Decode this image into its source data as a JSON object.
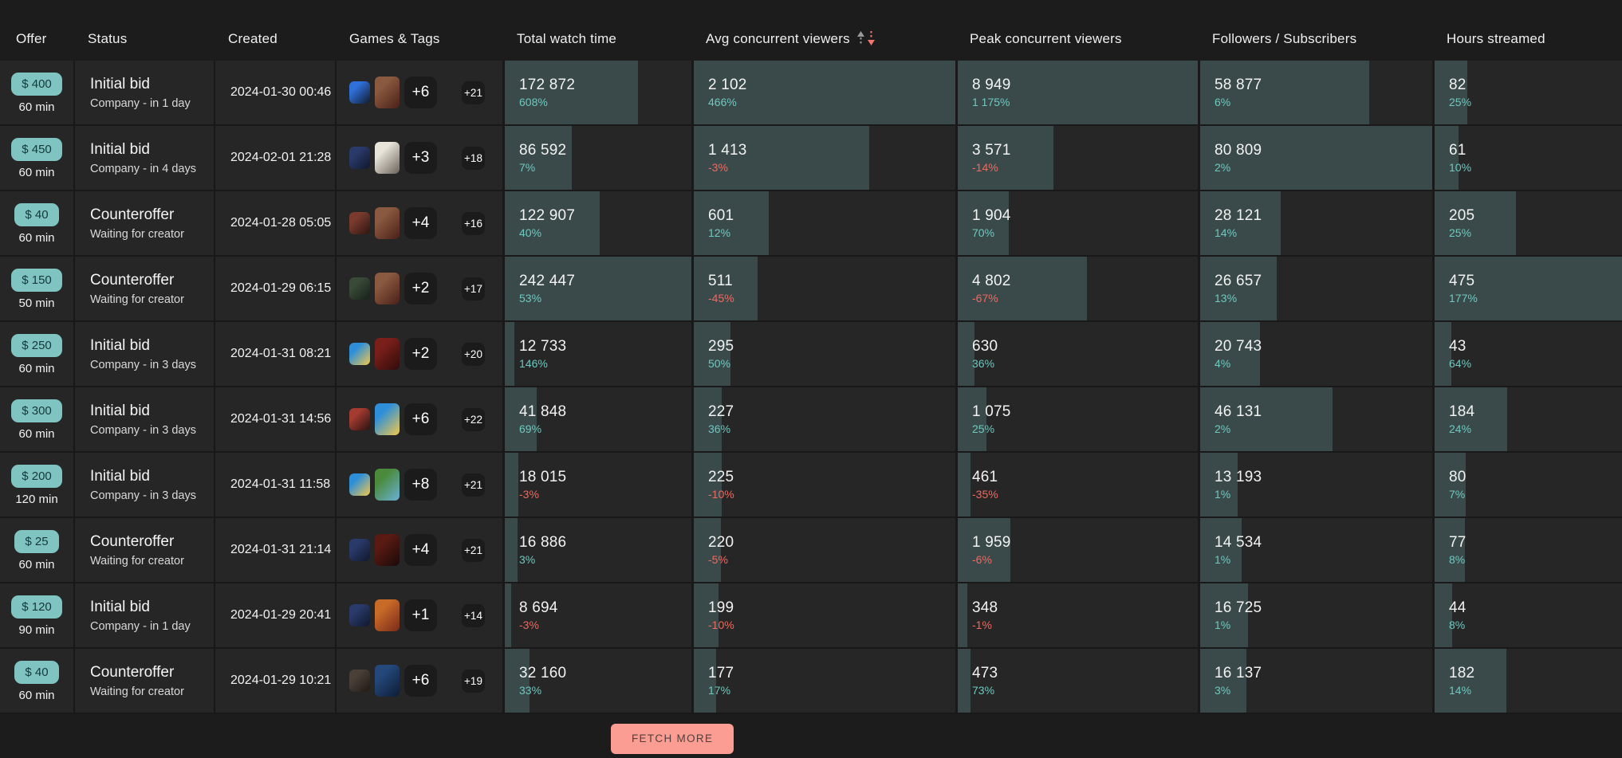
{
  "header": {
    "columns": [
      {
        "label": "Offer"
      },
      {
        "label": "Status"
      },
      {
        "label": "Created"
      },
      {
        "label": "Games & Tags"
      },
      {
        "label": "Total watch time"
      },
      {
        "label": "Avg concurrent viewers",
        "sorted": true
      },
      {
        "label": "Peak concurrent viewers"
      },
      {
        "label": "Followers / Subscribers"
      },
      {
        "label": "Hours streamed"
      }
    ],
    "sort": {
      "column": "Avg concurrent viewers",
      "direction": "desc"
    }
  },
  "colors": {
    "accent_teal": "#7fc4c1",
    "bar": "#3a4a4b",
    "positive": "#6ec8c0",
    "negative": "#f0685e",
    "button": "#fb9d92"
  },
  "footer": {
    "fetch_more_label": "FETCH MORE"
  },
  "rows": [
    {
      "offer": {
        "price": "$ 400",
        "duration": "60 min"
      },
      "status": {
        "label": "Initial bid",
        "sub": "Company - in 1 day"
      },
      "created": "2024-01-30 00:46",
      "games": {
        "more_games": "+6",
        "more_tags": "+21",
        "thumbs": [
          "#2f6fd8|#101c30",
          "#8a5a40|#4a2018"
        ]
      },
      "metrics": {
        "watch": {
          "value": "172 872",
          "change": "608%"
        },
        "avg": {
          "value": "2 102",
          "change": "466%"
        },
        "peak": {
          "value": "8 949",
          "change": "1 175%"
        },
        "followers": {
          "value": "58 877",
          "change": "6%"
        },
        "hours": {
          "value": "82",
          "change": "25%"
        }
      }
    },
    {
      "offer": {
        "price": "$ 450",
        "duration": "60 min"
      },
      "status": {
        "label": "Initial bid",
        "sub": "Company - in 4 days"
      },
      "created": "2024-02-01 21:28",
      "games": {
        "more_games": "+3",
        "more_tags": "+18",
        "thumbs": [
          "#2a3a6a|#10182e",
          "#e8e4da|#6a6258"
        ]
      },
      "metrics": {
        "watch": {
          "value": "86 592",
          "change": "7%"
        },
        "avg": {
          "value": "1 413",
          "change": "-3%"
        },
        "peak": {
          "value": "3 571",
          "change": "-14%"
        },
        "followers": {
          "value": "80 809",
          "change": "2%"
        },
        "hours": {
          "value": "61",
          "change": "10%"
        }
      }
    },
    {
      "offer": {
        "price": "$ 40",
        "duration": "60 min"
      },
      "status": {
        "label": "Counteroffer",
        "sub": "Waiting for creator"
      },
      "created": "2024-01-28 05:05",
      "games": {
        "more_games": "+4",
        "more_tags": "+16",
        "thumbs": [
          "#7a3b2e|#2e1511",
          "#8a5a40|#4a2018"
        ]
      },
      "metrics": {
        "watch": {
          "value": "122 907",
          "change": "40%"
        },
        "avg": {
          "value": "601",
          "change": "12%"
        },
        "peak": {
          "value": "1 904",
          "change": "70%"
        },
        "followers": {
          "value": "28 121",
          "change": "14%"
        },
        "hours": {
          "value": "205",
          "change": "25%"
        }
      }
    },
    {
      "offer": {
        "price": "$ 150",
        "duration": "50 min"
      },
      "status": {
        "label": "Counteroffer",
        "sub": "Waiting for creator"
      },
      "created": "2024-01-29 06:15",
      "games": {
        "more_games": "+2",
        "more_tags": "+17",
        "thumbs": [
          "#3a4a38|#15201a",
          "#8a5a40|#4a2018"
        ]
      },
      "metrics": {
        "watch": {
          "value": "242 447",
          "change": "53%"
        },
        "avg": {
          "value": "511",
          "change": "-45%"
        },
        "peak": {
          "value": "4 802",
          "change": "-67%"
        },
        "followers": {
          "value": "26 657",
          "change": "13%"
        },
        "hours": {
          "value": "475",
          "change": "177%"
        }
      }
    },
    {
      "offer": {
        "price": "$ 250",
        "duration": "60 min"
      },
      "status": {
        "label": "Initial bid",
        "sub": "Company - in 3 days"
      },
      "created": "2024-01-31 08:21",
      "games": {
        "more_games": "+2",
        "more_tags": "+20",
        "thumbs": [
          "#2e8fd8|#f2c84b",
          "#7a1f1a|#300c0a"
        ]
      },
      "metrics": {
        "watch": {
          "value": "12 733",
          "change": "146%"
        },
        "avg": {
          "value": "295",
          "change": "50%"
        },
        "peak": {
          "value": "630",
          "change": "36%"
        },
        "followers": {
          "value": "20 743",
          "change": "4%"
        },
        "hours": {
          "value": "43",
          "change": "64%"
        }
      }
    },
    {
      "offer": {
        "price": "$ 300",
        "duration": "60 min"
      },
      "status": {
        "label": "Initial bid",
        "sub": "Company - in 3 days"
      },
      "created": "2024-01-31 14:56",
      "games": {
        "more_games": "+6",
        "more_tags": "+22",
        "thumbs": [
          "#a33b30|#2a1210",
          "#2e8fd8|#f2c84b"
        ]
      },
      "metrics": {
        "watch": {
          "value": "41 848",
          "change": "69%"
        },
        "avg": {
          "value": "227",
          "change": "36%"
        },
        "peak": {
          "value": "1 075",
          "change": "25%"
        },
        "followers": {
          "value": "46 131",
          "change": "2%"
        },
        "hours": {
          "value": "184",
          "change": "24%"
        }
      }
    },
    {
      "offer": {
        "price": "$ 200",
        "duration": "120 min"
      },
      "status": {
        "label": "Initial bid",
        "sub": "Company - in 3 days"
      },
      "created": "2024-01-31 11:58",
      "games": {
        "more_games": "+8",
        "more_tags": "+21",
        "thumbs": [
          "#2e8fd8|#f2c84b",
          "#4a8a3a|#6ab0d8"
        ]
      },
      "metrics": {
        "watch": {
          "value": "18 015",
          "change": "-3%"
        },
        "avg": {
          "value": "225",
          "change": "-10%"
        },
        "peak": {
          "value": "461",
          "change": "-35%"
        },
        "followers": {
          "value": "13 193",
          "change": "1%"
        },
        "hours": {
          "value": "80",
          "change": "7%"
        }
      }
    },
    {
      "offer": {
        "price": "$ 25",
        "duration": "60 min"
      },
      "status": {
        "label": "Counteroffer",
        "sub": "Waiting for creator"
      },
      "created": "2024-01-31 21:14",
      "games": {
        "more_games": "+4",
        "more_tags": "+21",
        "thumbs": [
          "#2a3a6a|#10182e",
          "#5a1a14|#1a0a08"
        ]
      },
      "metrics": {
        "watch": {
          "value": "16 886",
          "change": "3%"
        },
        "avg": {
          "value": "220",
          "change": "-5%"
        },
        "peak": {
          "value": "1 959",
          "change": "-6%"
        },
        "followers": {
          "value": "14 534",
          "change": "1%"
        },
        "hours": {
          "value": "77",
          "change": "8%"
        }
      }
    },
    {
      "offer": {
        "price": "$ 120",
        "duration": "90 min"
      },
      "status": {
        "label": "Initial bid",
        "sub": "Company - in 1 day"
      },
      "created": "2024-01-29 20:41",
      "games": {
        "more_games": "+1",
        "more_tags": "+14",
        "thumbs": [
          "#2a3a6a|#10182e",
          "#c86a28|#7a2a1a"
        ]
      },
      "metrics": {
        "watch": {
          "value": "8 694",
          "change": "-3%"
        },
        "avg": {
          "value": "199",
          "change": "-10%"
        },
        "peak": {
          "value": "348",
          "change": "-1%"
        },
        "followers": {
          "value": "16 725",
          "change": "1%"
        },
        "hours": {
          "value": "44",
          "change": "8%"
        }
      }
    },
    {
      "offer": {
        "price": "$ 40",
        "duration": "60 min"
      },
      "status": {
        "label": "Counteroffer",
        "sub": "Waiting for creator"
      },
      "created": "2024-01-29 10:21",
      "games": {
        "more_games": "+6",
        "more_tags": "+19",
        "thumbs": [
          "#4a4038|#201a14",
          "#24487a|#0e1c36"
        ]
      },
      "metrics": {
        "watch": {
          "value": "32 160",
          "change": "33%"
        },
        "avg": {
          "value": "177",
          "change": "17%"
        },
        "peak": {
          "value": "473",
          "change": "73%"
        },
        "followers": {
          "value": "16 137",
          "change": "3%"
        },
        "hours": {
          "value": "182",
          "change": "14%"
        }
      }
    }
  ]
}
